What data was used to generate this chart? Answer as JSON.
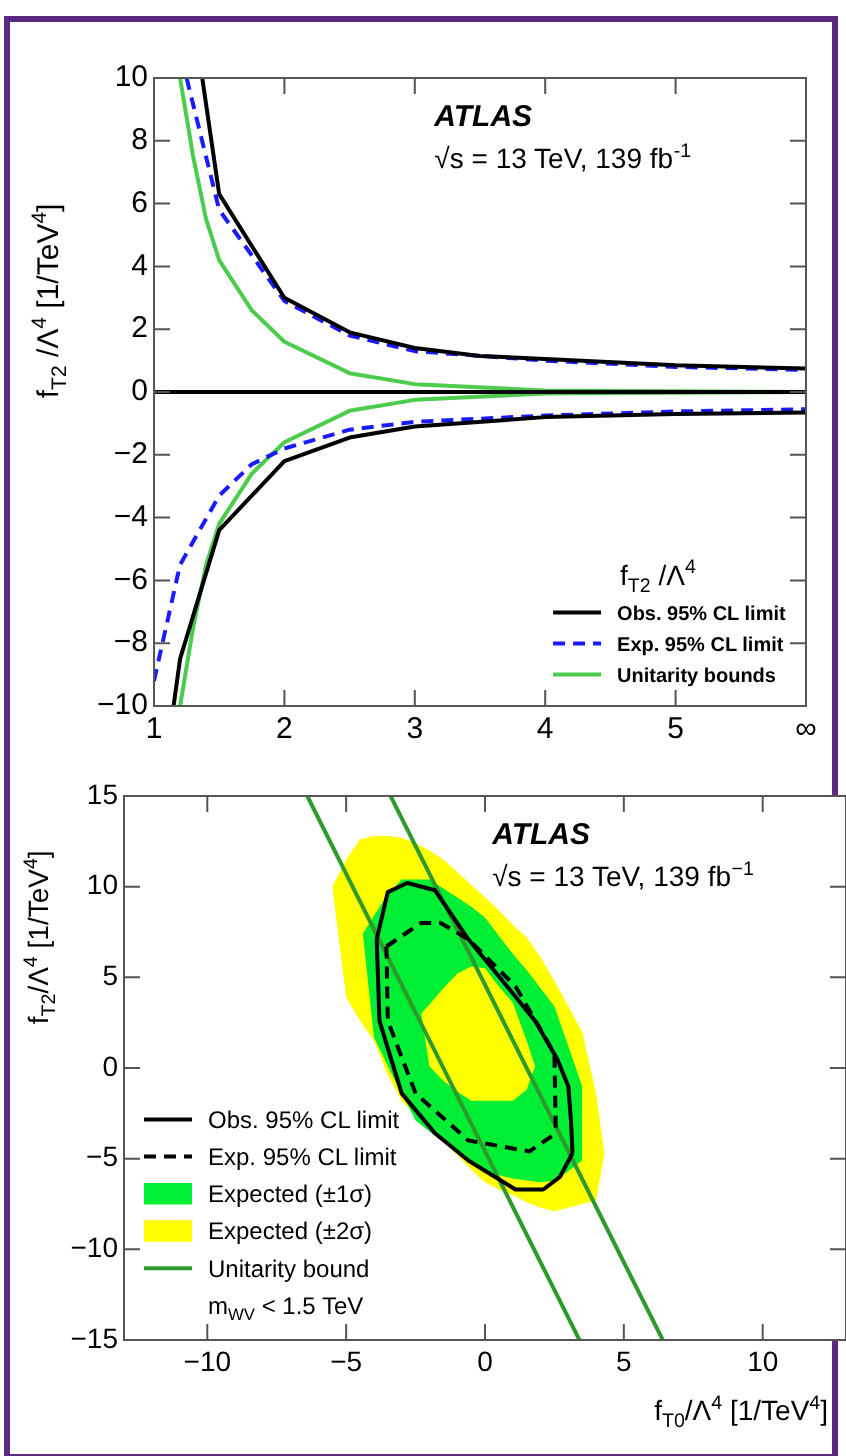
{
  "chart_data": [
    {
      "type": "line",
      "ylabel": "f$_{T2}$ /Λ$^{4}$ [1/TeV$^{4}$]",
      "legend_title": "f$_{T2}$ /Λ$^{4}$",
      "legend": "bottom right",
      "annotations": [
        "ATLAS",
        "√s = 13 TeV, 139 fb$^{-1}$"
      ],
      "xlim": [
        1,
        6
      ],
      "xticks": [
        1,
        2,
        3,
        4,
        5,
        {
          "value": 6,
          "label": "∞"
        }
      ],
      "ylim": [
        -10,
        10
      ],
      "yticks": [
        -10,
        -8,
        -6,
        -4,
        -2,
        0,
        2,
        4,
        6,
        8,
        10
      ],
      "ref_lines": [
        {
          "axis": "y",
          "value": 0,
          "color": "#000000"
        }
      ],
      "series": [
        {
          "name": "Obs. 95% CL limit",
          "color": "#000000",
          "x": [
            1.37,
            1.5,
            2,
            2.5,
            3,
            3.5,
            4,
            5,
            6
          ],
          "values": [
            10,
            6.3,
            3.0,
            1.9,
            1.4,
            1.15,
            1.05,
            0.85,
            0.75
          ]
        },
        {
          "name": "Exp. 95% CL limit",
          "color": "#1a1aff",
          "line_style": "dashed",
          "x": [
            1.25,
            1.5,
            2,
            2.5,
            3,
            4,
            5,
            6
          ],
          "values": [
            10,
            5.8,
            2.9,
            1.8,
            1.3,
            1.0,
            0.8,
            0.7
          ]
        },
        {
          "name": "Unitarity bounds",
          "color": "#4ccc4c",
          "x": [
            1.2,
            1.3,
            1.4,
            1.5,
            1.75,
            2,
            2.5,
            3,
            4,
            5,
            6
          ],
          "values": [
            10,
            7.5,
            5.5,
            4.2,
            2.6,
            1.6,
            0.6,
            0.25,
            0.05,
            0.02,
            0
          ]
        },
        {
          "color": "#000000",
          "x": [
            1.15,
            1.2,
            1.5,
            2,
            2.5,
            3,
            4,
            5,
            6
          ],
          "values": [
            -10,
            -8.5,
            -4.4,
            -2.2,
            -1.45,
            -1.1,
            -0.8,
            -0.7,
            -0.65
          ]
        },
        {
          "color": "#1a1aff",
          "line_style": "dashed",
          "x": [
            1,
            1.2,
            1.5,
            1.75,
            2,
            2.5,
            3,
            4,
            5,
            6
          ],
          "values": [
            -9.2,
            -5.5,
            -3.3,
            -2.3,
            -1.8,
            -1.2,
            -0.95,
            -0.75,
            -0.62,
            -0.55
          ]
        },
        {
          "color": "#4ccc4c",
          "x": [
            1.2,
            1.3,
            1.4,
            1.5,
            1.75,
            2,
            2.5,
            3,
            4,
            5,
            6
          ],
          "values": [
            -10,
            -7.5,
            -5.5,
            -4.2,
            -2.6,
            -1.6,
            -0.6,
            -0.25,
            -0.05,
            -0.02,
            0
          ]
        }
      ]
    },
    {
      "type": "line",
      "xlabel": "f$_{T0}$/Λ$^{4}$ [1/TeV$^{4}$]",
      "ylabel": "f$_{T2}$/Λ$^{4}$ [1/TeV$^{4}$]",
      "legend": "bottom left",
      "annotations": [
        "ATLAS",
        "√s = 13 TeV, 139 fb$^{−1}$"
      ],
      "xlim": [
        -13,
        13
      ],
      "xticks": [
        -10,
        -5,
        0,
        5,
        10
      ],
      "ylim": [
        -15,
        15
      ],
      "yticks": [
        -15,
        -10,
        -5,
        0,
        5,
        10,
        15
      ],
      "series": [
        {
          "name": "Obs. 95% CL limit",
          "color": "#000000",
          "x": [
            -3.9,
            -3.5,
            -2.8,
            -1.8,
            -0.6,
            0.8,
            1.8,
            2.6,
            3.0,
            3.1,
            3.15,
            null,
            -3.9,
            -3.8,
            -3.0,
            -1.8,
            -0.6,
            1.1,
            2.1,
            2.7,
            3.15
          ],
          "values": [
            7.1,
            9.7,
            10.2,
            9.8,
            7.1,
            4.5,
            2.6,
            0.5,
            -1.0,
            -3.0,
            -4.7,
            null,
            7.1,
            2.6,
            -1.4,
            -3.6,
            -5.1,
            -6.7,
            -6.7,
            -6.0,
            -4.7
          ]
        },
        {
          "name": "Exp. 95% CL limit",
          "color": "#000000",
          "line_style": "dashed",
          "x": [
            -3.55,
            -2.3,
            -1.6,
            -0.6,
            1.1,
            2.5,
            2.55,
            null,
            -3.55,
            -3.5,
            -2.5,
            -0.6,
            1.6,
            2.55
          ],
          "values": [
            6.7,
            8.0,
            8.0,
            7.1,
            4.5,
            0.8,
            -3.6,
            null,
            6.7,
            2.6,
            -1.4,
            -4.0,
            -4.6,
            -3.6
          ]
        },
        {
          "name": "Expected (±1σ)",
          "color": "#00ee33",
          "x": [
            -4.4,
            -4,
            -3.5,
            -3,
            -2.5,
            -2,
            -1.5,
            -1,
            -0.5,
            0,
            0.5,
            1,
            1.5,
            2,
            2.5,
            3,
            3.5
          ],
          "values": [
            null,
            null,
            null,
            null,
            null,
            null,
            null,
            null,
            null,
            null,
            null,
            null,
            null,
            null,
            null,
            null,
            null
          ],
          "lower": [
            7.4,
            1.7,
            0.1,
            -1.4,
            -2.9,
            -3.5,
            -4.1,
            -4.7,
            -5.3,
            -5.8,
            -5.9,
            -6.1,
            -6.2,
            -6.3,
            -6.2,
            -5.7,
            -5.1
          ],
          "upper": [
            7.4,
            8.4,
            9.6,
            10.4,
            10.4,
            10.4,
            9.9,
            9.4,
            8.9,
            8.3,
            7.3,
            6.3,
            5.4,
            4.4,
            3.4,
            1.2,
            -1.0
          ]
        },
        {
          "name": "Expected (±2σ)",
          "color": "#ffff00",
          "x": [
            -5.5,
            -5,
            -4.5,
            -4,
            -3.5,
            -3,
            -2.5,
            -2,
            -1.5,
            -1,
            -0.5,
            0,
            0.5,
            1,
            1.5,
            2,
            2.5,
            3,
            3.5,
            4,
            4.3
          ],
          "values": [
            null,
            null,
            null,
            null,
            null,
            null,
            null,
            null,
            null,
            null,
            null,
            null,
            null,
            null,
            null,
            null,
            null,
            null,
            null,
            null,
            null
          ],
          "lower": [
            10.0,
            3.9,
            2.6,
            1.5,
            -0.4,
            -1.8,
            -2.6,
            -3.3,
            -4.1,
            -4.8,
            -5.6,
            -6.3,
            -6.7,
            -7.0,
            -7.4,
            -7.7,
            -7.9,
            -7.7,
            -7.5,
            -7.3,
            -4.7
          ],
          "upper": [
            10.0,
            11.5,
            12.6,
            12.8,
            12.8,
            12.7,
            12.4,
            12.0,
            11.5,
            10.8,
            10.1,
            9.4,
            8.7,
            7.9,
            7.2,
            6.1,
            4.8,
            3.4,
            2.0,
            -1.4,
            -4.7
          ]
        },
        {
          "name": "Unitarity bound m$_{WV}$ < 1.5 TeV",
          "color": "#2e9a2e",
          "x": [
            -6.4,
            3.4
          ],
          "values": [
            15,
            -15
          ]
        },
        {
          "color": "#2e9a2e",
          "x": [
            -3.4,
            6.4
          ],
          "values": [
            15,
            -15
          ]
        },
        {
          "color": "#ffff00",
          "x": [
            -2.3,
            -2,
            -1.5,
            -1,
            -0.5,
            0,
            0.5,
            1,
            1.5,
            1.8
          ],
          "values": [
            null,
            null,
            null,
            null,
            null,
            null,
            null,
            null,
            null,
            null
          ],
          "lower": [
            3.0,
            0.1,
            -0.7,
            -1.3,
            -1.8,
            -1.8,
            -1.8,
            -1.8,
            -1.2,
            0.1
          ],
          "upper": [
            3.0,
            3.5,
            4.4,
            5.2,
            5.6,
            5.5,
            4.5,
            3.6,
            1.5,
            0.1
          ]
        }
      ]
    }
  ]
}
